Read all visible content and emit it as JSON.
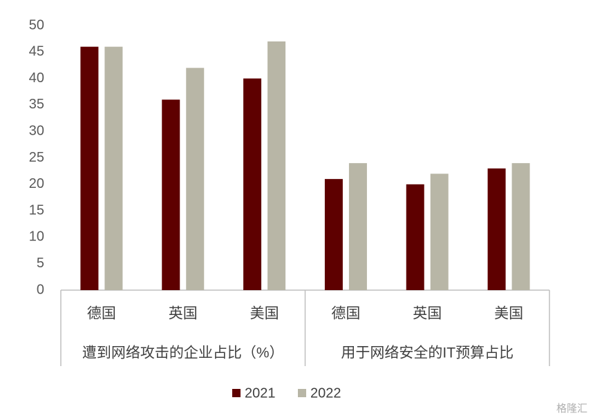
{
  "chart_data": {
    "type": "bar",
    "groups": [
      {
        "name": "遭到网络攻击的企业占比（%）",
        "categories": [
          "德国",
          "英国",
          "美国"
        ]
      },
      {
        "name": "用于网络安全的IT预算占比",
        "categories": [
          "德国",
          "英国",
          "美国"
        ]
      }
    ],
    "series": [
      {
        "name": "2021",
        "color": "#5e0000",
        "values": [
          46,
          36,
          40,
          21,
          20,
          23
        ]
      },
      {
        "name": "2022",
        "color": "#b8b6a6",
        "values": [
          46,
          42,
          47,
          24,
          22,
          24
        ]
      }
    ],
    "ylim": [
      0,
      50
    ],
    "yticks": [
      0,
      5,
      10,
      15,
      20,
      25,
      30,
      35,
      40,
      45,
      50
    ],
    "grid": false,
    "legend": "bottom",
    "watermark": "格隆汇"
  }
}
